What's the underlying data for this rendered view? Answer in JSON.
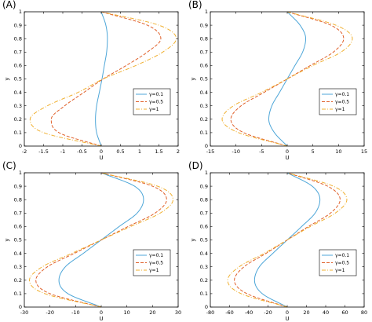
{
  "chart_data": [
    {
      "panel_label": "(A)",
      "type": "line",
      "xlabel": "U",
      "ylabel": "y",
      "xlim": [
        -2,
        2
      ],
      "ylim": [
        0,
        1
      ],
      "xticks": [
        -2,
        -1.5,
        -1,
        -0.5,
        0,
        0.5,
        1,
        1.5,
        2
      ],
      "xtick_labels": [
        "-2",
        "-1.5",
        "-1",
        "-0.5",
        "0",
        "0.5",
        "1",
        "1.5",
        "2"
      ],
      "yticks": [
        0,
        0.1,
        0.2,
        0.3,
        0.4,
        0.5,
        0.6,
        0.7,
        0.8,
        0.9,
        1
      ],
      "ytick_labels": [
        "0",
        "0.1",
        "0.2",
        "0.3",
        "0.4",
        "0.5",
        "0.6",
        "0.7",
        "0.8",
        "0.9",
        "1"
      ],
      "legend_position": "lower-right",
      "series": [
        {
          "name": "γ=0.1",
          "color": "#4DA6D8",
          "dash": "solid",
          "y": [
            0,
            0.1,
            0.2,
            0.3,
            0.4,
            0.5,
            0.6,
            0.7,
            0.8,
            0.9,
            1
          ],
          "x": [
            0,
            -0.12,
            -0.15,
            -0.12,
            -0.05,
            0.02,
            0.08,
            0.14,
            0.16,
            0.12,
            0
          ]
        },
        {
          "name": "γ=0.5",
          "color": "#E0602A",
          "dash": "dashed",
          "y": [
            0,
            0.1,
            0.2,
            0.3,
            0.4,
            0.5,
            0.6,
            0.7,
            0.8,
            0.9,
            1
          ],
          "x": [
            0,
            -1.1,
            -1.3,
            -0.95,
            -0.45,
            0.05,
            0.65,
            1.2,
            1.55,
            1.2,
            0
          ]
        },
        {
          "name": "γ=1",
          "color": "#F0B030",
          "dash": "dashdot",
          "y": [
            0,
            0.1,
            0.2,
            0.3,
            0.4,
            0.5,
            0.6,
            0.7,
            0.8,
            0.9,
            1
          ],
          "x": [
            0,
            -1.5,
            -1.85,
            -1.4,
            -0.6,
            0.05,
            0.9,
            1.6,
            1.95,
            1.5,
            0
          ]
        }
      ]
    },
    {
      "panel_label": "(B)",
      "type": "line",
      "xlabel": "U",
      "ylabel": "y",
      "xlim": [
        -15,
        15
      ],
      "ylim": [
        0,
        1
      ],
      "xticks": [
        -15,
        -10,
        -5,
        0,
        5,
        10,
        15
      ],
      "xtick_labels": [
        "-15",
        "-10",
        "-5",
        "0",
        "5",
        "10",
        "15"
      ],
      "yticks": [
        0,
        0.1,
        0.2,
        0.3,
        0.4,
        0.5,
        0.6,
        0.7,
        0.8,
        0.9,
        1
      ],
      "ytick_labels": [
        "0",
        "0.1",
        "0.2",
        "0.3",
        "0.4",
        "0.5",
        "0.6",
        "0.7",
        "0.8",
        "0.9",
        "1"
      ],
      "legend_position": "lower-right",
      "series": [
        {
          "name": "γ=0.1",
          "color": "#4DA6D8",
          "dash": "solid",
          "y": [
            0,
            0.1,
            0.2,
            0.3,
            0.4,
            0.5,
            0.6,
            0.7,
            0.8,
            0.9,
            1
          ],
          "x": [
            0,
            -2.5,
            -3.6,
            -3.0,
            -1.5,
            0,
            1.5,
            3.0,
            3.6,
            2.5,
            0
          ]
        },
        {
          "name": "γ=0.5",
          "color": "#E0602A",
          "dash": "dashed",
          "y": [
            0,
            0.1,
            0.2,
            0.3,
            0.4,
            0.5,
            0.6,
            0.7,
            0.8,
            0.9,
            1
          ],
          "x": [
            0,
            -8.5,
            -11.0,
            -9.0,
            -4.5,
            0,
            4.5,
            9.0,
            11.0,
            8.5,
            0
          ]
        },
        {
          "name": "γ=1",
          "color": "#F0B030",
          "dash": "dashdot",
          "y": [
            0,
            0.1,
            0.2,
            0.3,
            0.4,
            0.5,
            0.6,
            0.7,
            0.8,
            0.9,
            1
          ],
          "x": [
            0,
            -9.5,
            -12.7,
            -10.5,
            -5.0,
            0,
            5.0,
            10.5,
            12.7,
            9.5,
            0
          ]
        }
      ]
    },
    {
      "panel_label": "(C)",
      "type": "line",
      "xlabel": "U",
      "ylabel": "y",
      "xlim": [
        -30,
        30
      ],
      "ylim": [
        0,
        1
      ],
      "xticks": [
        -30,
        -20,
        -10,
        0,
        10,
        20,
        30
      ],
      "xtick_labels": [
        "-30",
        "-20",
        "-10",
        "0",
        "10",
        "20",
        "30"
      ],
      "yticks": [
        0,
        0.1,
        0.2,
        0.3,
        0.4,
        0.5,
        0.6,
        0.7,
        0.8,
        0.9,
        1
      ],
      "ytick_labels": [
        "0",
        "0.1",
        "0.2",
        "0.3",
        "0.4",
        "0.5",
        "0.6",
        "0.7",
        "0.8",
        "0.9",
        "1"
      ],
      "legend_position": "lower-right",
      "series": [
        {
          "name": "γ=0.1",
          "color": "#4DA6D8",
          "dash": "solid",
          "y": [
            0,
            0.1,
            0.2,
            0.3,
            0.4,
            0.5,
            0.6,
            0.7,
            0.8,
            0.9,
            1
          ],
          "x": [
            0,
            -13.0,
            -16.5,
            -14.0,
            -7.0,
            0,
            7.0,
            14.0,
            16.5,
            13.0,
            0
          ]
        },
        {
          "name": "γ=0.5",
          "color": "#E0602A",
          "dash": "dashed",
          "y": [
            0,
            0.1,
            0.2,
            0.3,
            0.4,
            0.5,
            0.6,
            0.7,
            0.8,
            0.9,
            1
          ],
          "x": [
            0,
            -20.0,
            -25.5,
            -21.0,
            -10.5,
            0,
            10.5,
            21.0,
            25.5,
            20.0,
            0
          ]
        },
        {
          "name": "γ=1",
          "color": "#F0B030",
          "dash": "dashdot",
          "y": [
            0,
            0.1,
            0.2,
            0.3,
            0.4,
            0.5,
            0.6,
            0.7,
            0.8,
            0.9,
            1
          ],
          "x": [
            0,
            -22.0,
            -28.0,
            -23.0,
            -11.5,
            0,
            11.5,
            23.0,
            28.0,
            22.0,
            0
          ]
        }
      ]
    },
    {
      "panel_label": "(D)",
      "type": "line",
      "xlabel": "U",
      "ylabel": "y",
      "xlim": [
        -80,
        80
      ],
      "ylim": [
        0,
        1
      ],
      "xticks": [
        -80,
        -60,
        -40,
        -20,
        0,
        20,
        40,
        60,
        80
      ],
      "xtick_labels": [
        "-80",
        "-60",
        "-40",
        "-20",
        "0",
        "20",
        "40",
        "60",
        "80"
      ],
      "yticks": [
        0,
        0.1,
        0.2,
        0.3,
        0.4,
        0.5,
        0.6,
        0.7,
        0.8,
        0.9,
        1
      ],
      "ytick_labels": [
        "0",
        "0.1",
        "0.2",
        "0.3",
        "0.4",
        "0.5",
        "0.6",
        "0.7",
        "0.8",
        "0.9",
        "1"
      ],
      "legend_position": "lower-right",
      "series": [
        {
          "name": "γ=0.1",
          "color": "#4DA6D8",
          "dash": "solid",
          "y": [
            0,
            0.1,
            0.2,
            0.3,
            0.4,
            0.5,
            0.6,
            0.7,
            0.8,
            0.9,
            1
          ],
          "x": [
            0,
            -26.0,
            -34.0,
            -29.0,
            -15.0,
            0,
            15.0,
            29.0,
            34.0,
            26.0,
            0
          ]
        },
        {
          "name": "γ=0.5",
          "color": "#E0602A",
          "dash": "dashed",
          "y": [
            0,
            0.1,
            0.2,
            0.3,
            0.4,
            0.5,
            0.6,
            0.7,
            0.8,
            0.9,
            1
          ],
          "x": [
            0,
            -42.0,
            -55.0,
            -45.0,
            -22.0,
            0,
            22.0,
            45.0,
            55.0,
            42.0,
            0
          ]
        },
        {
          "name": "γ=1",
          "color": "#F0B030",
          "dash": "dashdot",
          "y": [
            0,
            0.1,
            0.2,
            0.3,
            0.4,
            0.5,
            0.6,
            0.7,
            0.8,
            0.9,
            1
          ],
          "x": [
            0,
            -48.0,
            -62.0,
            -50.0,
            -24.0,
            0,
            24.0,
            50.0,
            62.0,
            48.0,
            0
          ]
        }
      ]
    }
  ]
}
